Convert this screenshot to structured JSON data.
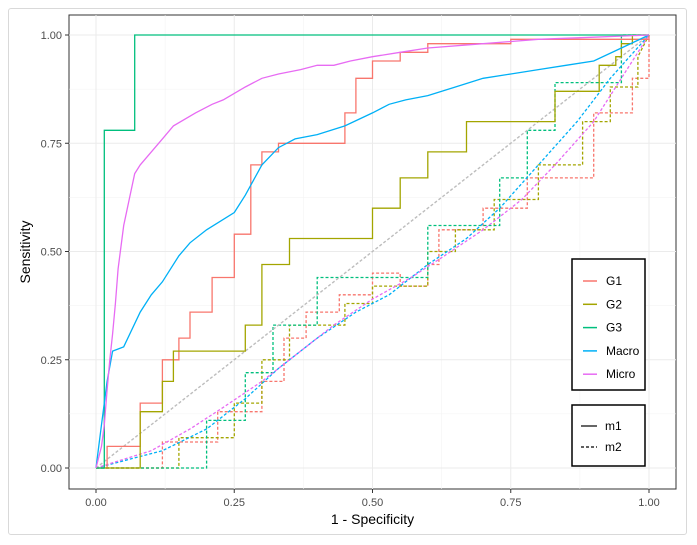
{
  "chart_data": {
    "type": "line",
    "title": "",
    "xlabel": "1 - Specificity",
    "ylabel": "Sensitivity",
    "xlim": [
      0,
      1
    ],
    "ylim": [
      0,
      1
    ],
    "x_ticks": [
      "0.00",
      "0.25",
      "0.50",
      "0.75",
      "1.00"
    ],
    "y_ticks": [
      "0.00",
      "0.25",
      "0.50",
      "0.75",
      "1.00"
    ],
    "grid": true,
    "diagonal_reference": true,
    "color_legend": {
      "position": "right",
      "items": [
        {
          "name": "G1",
          "color": "#F8766D"
        },
        {
          "name": "G2",
          "color": "#A3A500"
        },
        {
          "name": "G3",
          "color": "#00BF7D"
        },
        {
          "name": "Macro",
          "color": "#00B0F6"
        },
        {
          "name": "Micro",
          "color": "#E76BF3"
        }
      ]
    },
    "linetype_legend": {
      "position": "bottom-right",
      "items": [
        {
          "name": "m1",
          "linetype": "solid"
        },
        {
          "name": "m2",
          "linetype": "dashed"
        }
      ]
    },
    "series": [
      {
        "group": "G1",
        "method": "m1",
        "color": "#F8766D",
        "dash": "solid",
        "x": [
          0,
          0.02,
          0.02,
          0.08,
          0.08,
          0.12,
          0.12,
          0.15,
          0.15,
          0.17,
          0.17,
          0.21,
          0.21,
          0.25,
          0.25,
          0.28,
          0.28,
          0.3,
          0.3,
          0.33,
          0.33,
          0.45,
          0.45,
          0.47,
          0.47,
          0.5,
          0.5,
          0.55,
          0.55,
          0.6,
          0.6,
          0.75,
          0.75,
          1,
          1
        ],
        "y": [
          0,
          0,
          0.05,
          0.05,
          0.15,
          0.15,
          0.25,
          0.25,
          0.3,
          0.3,
          0.36,
          0.36,
          0.44,
          0.44,
          0.54,
          0.54,
          0.7,
          0.7,
          0.73,
          0.73,
          0.75,
          0.75,
          0.82,
          0.82,
          0.9,
          0.9,
          0.94,
          0.94,
          0.96,
          0.96,
          0.98,
          0.98,
          0.99,
          0.99,
          1
        ]
      },
      {
        "group": "G2",
        "method": "m1",
        "color": "#A3A500",
        "dash": "solid",
        "x": [
          0,
          0.08,
          0.08,
          0.12,
          0.12,
          0.14,
          0.14,
          0.27,
          0.27,
          0.3,
          0.3,
          0.33,
          0.33,
          0.35,
          0.35,
          0.5,
          0.5,
          0.55,
          0.55,
          0.6,
          0.6,
          0.67,
          0.67,
          0.75,
          0.75,
          0.83,
          0.83,
          0.91,
          0.91,
          0.92,
          0.92,
          0.94,
          0.94,
          0.95,
          0.95,
          0.97,
          0.97,
          1
        ],
        "y": [
          0,
          0,
          0.13,
          0.13,
          0.2,
          0.2,
          0.27,
          0.27,
          0.33,
          0.33,
          0.47,
          0.47,
          0.47,
          0.47,
          0.53,
          0.53,
          0.6,
          0.6,
          0.67,
          0.67,
          0.73,
          0.73,
          0.8,
          0.8,
          0.8,
          0.8,
          0.87,
          0.87,
          0.93,
          0.93,
          0.93,
          0.93,
          0.95,
          0.95,
          0.98,
          0.98,
          1,
          1
        ]
      },
      {
        "group": "G3",
        "method": "m1",
        "color": "#00BF7D",
        "dash": "solid",
        "x": [
          0,
          0.015,
          0.015,
          0.07,
          0.07,
          1
        ],
        "y": [
          0,
          0,
          0.78,
          0.78,
          1,
          1
        ]
      },
      {
        "group": "Macro",
        "method": "m1",
        "color": "#00B0F6",
        "dash": "solid",
        "x": [
          0,
          0.01,
          0.02,
          0.03,
          0.05,
          0.08,
          0.1,
          0.12,
          0.15,
          0.17,
          0.2,
          0.25,
          0.27,
          0.3,
          0.33,
          0.36,
          0.4,
          0.45,
          0.5,
          0.53,
          0.56,
          0.6,
          0.65,
          0.7,
          0.75,
          0.8,
          0.85,
          0.9,
          0.95,
          1
        ],
        "y": [
          0,
          0.1,
          0.2,
          0.27,
          0.28,
          0.36,
          0.4,
          0.43,
          0.49,
          0.52,
          0.55,
          0.59,
          0.63,
          0.7,
          0.74,
          0.76,
          0.77,
          0.79,
          0.82,
          0.84,
          0.85,
          0.86,
          0.88,
          0.9,
          0.91,
          0.92,
          0.93,
          0.94,
          0.97,
          1
        ]
      },
      {
        "group": "Micro",
        "method": "m1",
        "color": "#E76BF3",
        "dash": "solid",
        "x": [
          0,
          0.01,
          0.015,
          0.02,
          0.025,
          0.03,
          0.035,
          0.04,
          0.05,
          0.06,
          0.07,
          0.08,
          0.1,
          0.12,
          0.14,
          0.18,
          0.21,
          0.23,
          0.27,
          0.3,
          0.33,
          0.37,
          0.4,
          0.43,
          0.46,
          0.5,
          0.55,
          0.6,
          0.7,
          0.8,
          0.9,
          1
        ],
        "y": [
          0,
          0.05,
          0.1,
          0.18,
          0.25,
          0.31,
          0.38,
          0.46,
          0.56,
          0.62,
          0.68,
          0.7,
          0.73,
          0.76,
          0.79,
          0.82,
          0.84,
          0.85,
          0.88,
          0.9,
          0.91,
          0.92,
          0.93,
          0.93,
          0.94,
          0.95,
          0.96,
          0.97,
          0.98,
          0.99,
          0.995,
          1
        ]
      },
      {
        "group": "G1",
        "method": "m2",
        "color": "#F8766D",
        "dash": "dashed",
        "x": [
          0,
          0.12,
          0.12,
          0.22,
          0.22,
          0.3,
          0.3,
          0.34,
          0.34,
          0.38,
          0.38,
          0.44,
          0.44,
          0.5,
          0.5,
          0.55,
          0.55,
          0.6,
          0.6,
          0.62,
          0.62,
          0.7,
          0.7,
          0.78,
          0.78,
          0.85,
          0.85,
          0.9,
          0.9,
          0.97,
          0.97,
          1,
          1
        ],
        "y": [
          0,
          0,
          0.06,
          0.06,
          0.13,
          0.13,
          0.2,
          0.2,
          0.3,
          0.3,
          0.36,
          0.36,
          0.4,
          0.4,
          0.45,
          0.45,
          0.42,
          0.42,
          0.47,
          0.47,
          0.55,
          0.55,
          0.6,
          0.6,
          0.67,
          0.67,
          0.67,
          0.67,
          0.82,
          0.82,
          0.9,
          0.9,
          1
        ]
      },
      {
        "group": "G2",
        "method": "m2",
        "color": "#A3A500",
        "dash": "dashed",
        "x": [
          0,
          0.15,
          0.15,
          0.25,
          0.25,
          0.3,
          0.3,
          0.35,
          0.35,
          0.45,
          0.45,
          0.5,
          0.5,
          0.6,
          0.6,
          0.65,
          0.65,
          0.72,
          0.72,
          0.8,
          0.8,
          0.88,
          0.88,
          0.93,
          0.93,
          0.98,
          0.98,
          1
        ],
        "y": [
          0,
          0,
          0.07,
          0.07,
          0.15,
          0.15,
          0.25,
          0.25,
          0.33,
          0.33,
          0.38,
          0.38,
          0.42,
          0.42,
          0.5,
          0.5,
          0.55,
          0.55,
          0.62,
          0.62,
          0.7,
          0.7,
          0.8,
          0.8,
          0.88,
          0.88,
          0.95,
          1
        ]
      },
      {
        "group": "G3",
        "method": "m2",
        "color": "#00BF7D",
        "dash": "dashed",
        "x": [
          0,
          0.2,
          0.2,
          0.27,
          0.27,
          0.32,
          0.32,
          0.4,
          0.4,
          0.5,
          0.5,
          0.6,
          0.6,
          0.67,
          0.67,
          0.73,
          0.73,
          0.78,
          0.78,
          0.83,
          0.83,
          0.9,
          0.9,
          0.95,
          0.95,
          1
        ],
        "y": [
          0,
          0,
          0.11,
          0.11,
          0.22,
          0.22,
          0.33,
          0.33,
          0.44,
          0.44,
          0.44,
          0.44,
          0.56,
          0.56,
          0.56,
          0.56,
          0.67,
          0.67,
          0.78,
          0.78,
          0.89,
          0.89,
          0.89,
          0.89,
          1,
          1
        ]
      },
      {
        "group": "Macro",
        "method": "m2",
        "color": "#00B0F6",
        "dash": "dashed",
        "x": [
          0,
          0.12,
          0.2,
          0.27,
          0.33,
          0.4,
          0.47,
          0.53,
          0.6,
          0.67,
          0.73,
          0.8,
          0.87,
          0.93,
          1
        ],
        "y": [
          0,
          0.04,
          0.09,
          0.16,
          0.23,
          0.3,
          0.36,
          0.4,
          0.47,
          0.53,
          0.6,
          0.7,
          0.8,
          0.9,
          1
        ]
      },
      {
        "group": "Micro",
        "method": "m2",
        "color": "#E76BF3",
        "dash": "dashed",
        "x": [
          0,
          0.1,
          0.17,
          0.23,
          0.3,
          0.37,
          0.43,
          0.5,
          0.57,
          0.63,
          0.7,
          0.77,
          0.83,
          0.9,
          0.96,
          1
        ],
        "y": [
          0,
          0.04,
          0.09,
          0.14,
          0.2,
          0.27,
          0.33,
          0.39,
          0.44,
          0.49,
          0.55,
          0.62,
          0.7,
          0.8,
          0.92,
          1
        ]
      },
      {
        "group": "reference",
        "method": "m2",
        "color": "#bdbdbd",
        "dash": "dashed",
        "x": [
          0,
          1
        ],
        "y": [
          0,
          1
        ]
      }
    ]
  }
}
